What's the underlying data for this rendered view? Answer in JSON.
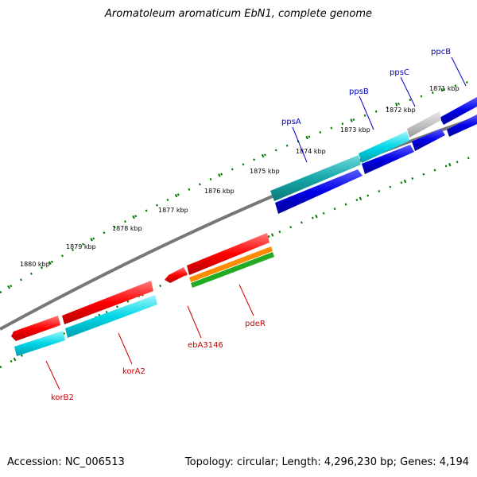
{
  "title": "Aromatoleum aromaticum EbN1, complete genome",
  "accession": "Accession: NC_006513",
  "stats": "Topology: circular; Length: 4,296,230 bp; Genes: 4,194",
  "position_labels": [
    "1871 kbp",
    "1872 kbp",
    "1873 kbp",
    "1874 kbp",
    "1875 kbp",
    "1876 kbp",
    "1877 kbp",
    "1878 kbp",
    "1879 kbp",
    "1880 kbp"
  ],
  "genes": {
    "ppcB": "ppcB",
    "ppsC": "ppsC",
    "ppsB": "ppsB",
    "ppsA": "ppsA",
    "pdeR": "pdeR",
    "ebA3146": "ebA3146",
    "korA2": "korA2",
    "korB2": "korB2"
  },
  "colors": {
    "blue_gene": "#0000e6",
    "cyan_gene": "#00c8d2",
    "teal_gene": "#16a7a9",
    "red_gene": "#ff0000",
    "gray_gene": "#c3c3c3",
    "orange_gene": "#ff8c00",
    "green_gene": "#22aa22",
    "tick_green": "#007700",
    "backbone": "#777777",
    "blue_label": "#0000c0",
    "red_label": "#cc0000"
  }
}
